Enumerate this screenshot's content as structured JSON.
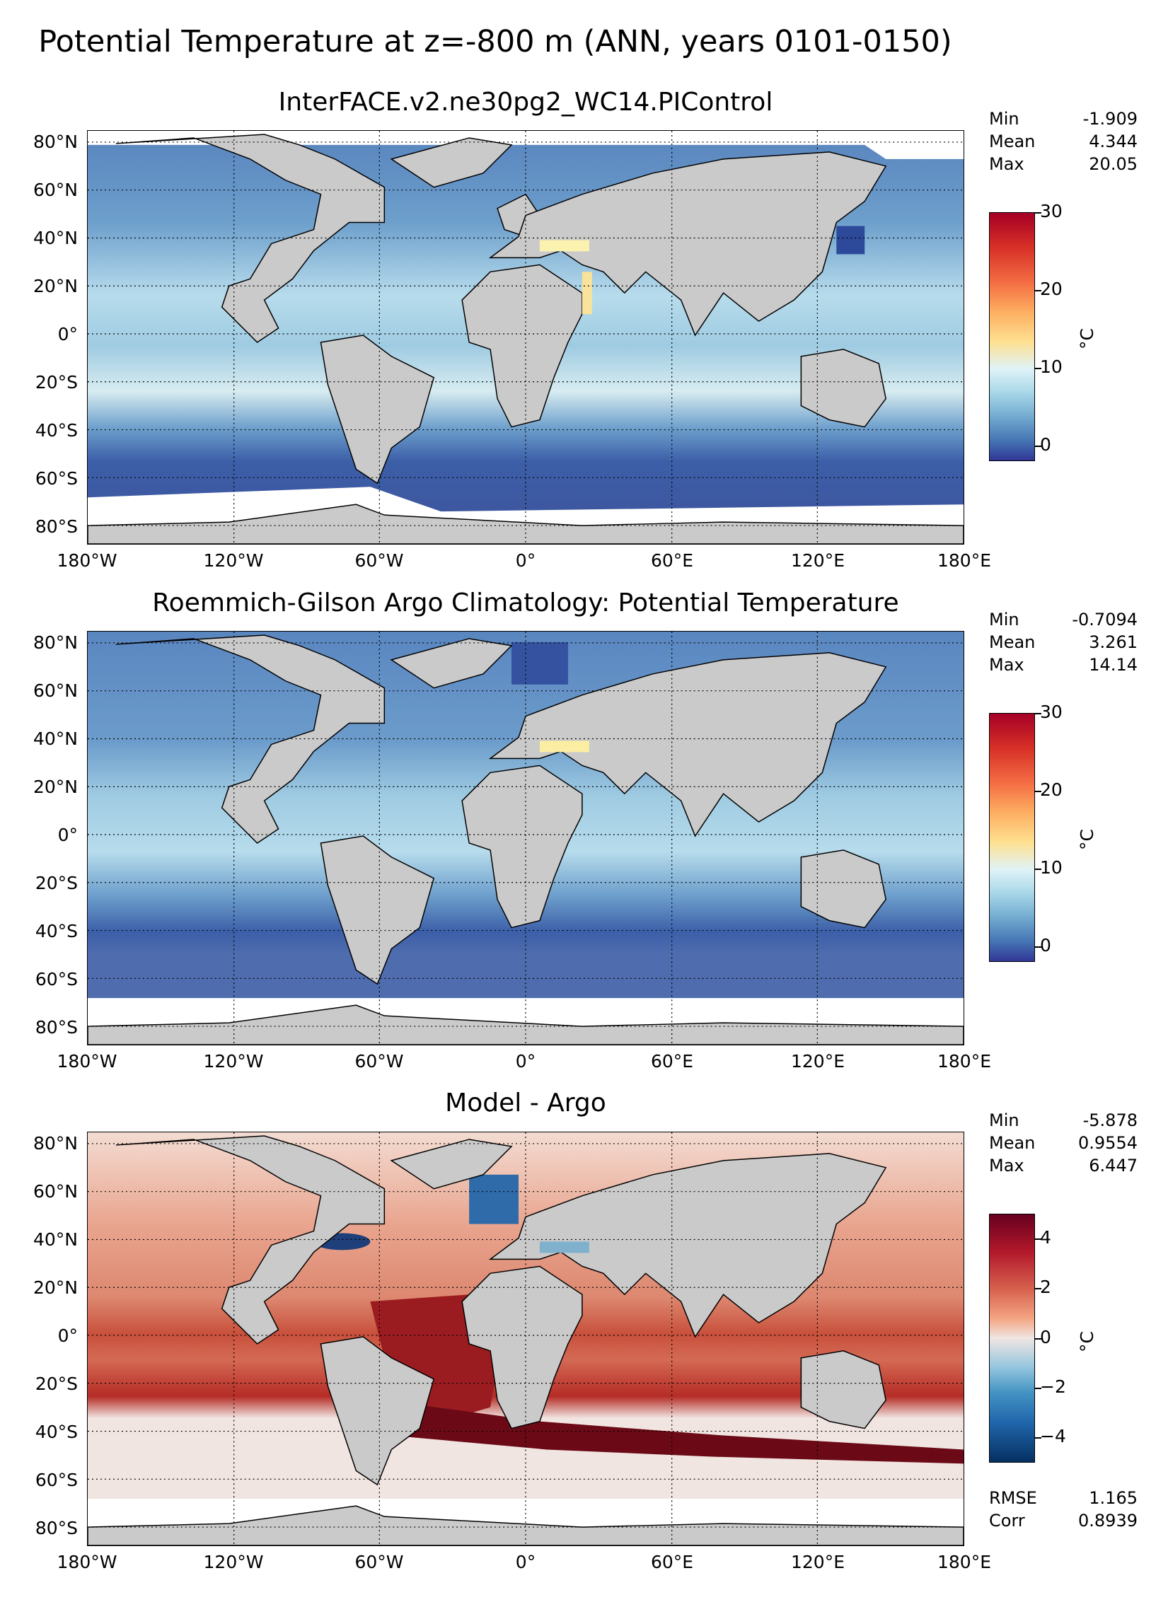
{
  "suptitle": "Potential Temperature at z=-800 m (ANN, years 0101-0150)",
  "lat_labels": [
    "80°N",
    "60°N",
    "40°N",
    "20°N",
    "0°",
    "20°S",
    "40°S",
    "60°S",
    "80°S"
  ],
  "lon_labels": [
    "180°W",
    "120°W",
    "60°W",
    "0°",
    "60°E",
    "120°E",
    "180°E"
  ],
  "panels": [
    {
      "title": "InterFACE.v2.ne30pg2_WC14.PIControl",
      "stats": {
        "min_label": "Min",
        "min": "-1.909",
        "mean_label": "Mean",
        "mean": "4.344",
        "max_label": "Max",
        "max": "20.05"
      },
      "colorbar": {
        "unit": "°C",
        "ticks": [
          "30",
          "20",
          "10",
          "0"
        ],
        "range": [
          -2,
          30
        ]
      },
      "colors": {
        "deep": "#3c5fa8",
        "mid": "#9fcbe2",
        "warm": "#fcf2b0"
      }
    },
    {
      "title": "Roemmich-Gilson Argo Climatology: Potential Temperature",
      "stats": {
        "min_label": "Min",
        "min": "-0.7094",
        "mean_label": "Mean",
        "mean": "3.261",
        "max_label": "Max",
        "max": "14.14"
      },
      "colorbar": {
        "unit": "°C",
        "ticks": [
          "30",
          "20",
          "10",
          "0"
        ],
        "range": [
          -2,
          30
        ]
      },
      "colors": {
        "deep": "#3c5fa8",
        "mid": "#8ec0dc",
        "warm": "#fbeea2"
      }
    },
    {
      "title": "Model - Argo",
      "stats": {
        "min_label": "Min",
        "min": "-5.878",
        "mean_label": "Mean",
        "mean": "0.9554",
        "max_label": "Max",
        "max": "6.447",
        "rmse_label": "RMSE",
        "rmse": "1.165",
        "corr_label": "Corr",
        "corr": "0.8939"
      },
      "colorbar": {
        "unit": "°C",
        "ticks": [
          "4",
          "2",
          "0",
          "−2",
          "−4"
        ],
        "range": [
          -5,
          5
        ]
      },
      "colors": {
        "neg": "#1f5aa3",
        "zero": "#f0e3dd",
        "pos": "#c43a2e",
        "strong": "#5e0a14"
      }
    }
  ],
  "colors": {
    "land": "#cacaca",
    "grid": "#000000"
  }
}
